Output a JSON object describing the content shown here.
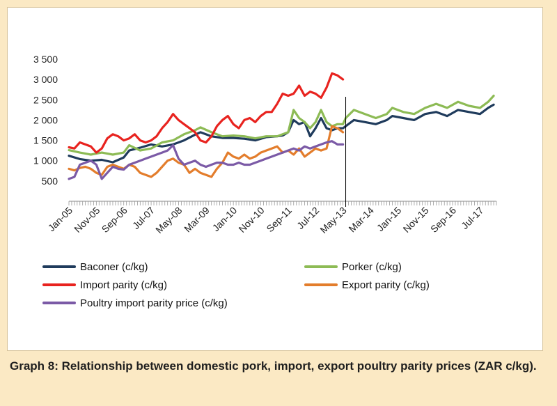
{
  "chart_data": {
    "type": "line",
    "title": "",
    "xlabel": "",
    "ylabel": "",
    "ylim": [
      0,
      3500
    ],
    "y_ticks": [
      "500",
      "1 000",
      "1 500",
      "2 000",
      "2 500",
      "3 000",
      "3 500"
    ],
    "x_tick_labels": [
      "Jan-05",
      "Nov-05",
      "Sep-06",
      "Jul-07",
      "May-08",
      "Mar-09",
      "Jan-10",
      "Nov-10",
      "Sep-11",
      "Jul-12",
      "May-13",
      "Mar-14",
      "Jan-15",
      "Nov-15",
      "Sep-16",
      "Jul-17"
    ],
    "x_months_from_jan05": [
      0,
      10,
      20,
      30,
      40,
      50,
      60,
      70,
      80,
      90,
      100,
      110,
      120,
      130,
      140,
      150
    ],
    "x_range_months": [
      0,
      156
    ],
    "forecast_divider_month": 101,
    "grid": false,
    "legend_position": "bottom",
    "series": [
      {
        "name": "Baconer (c/kg)",
        "color": "#1f3b5c",
        "points": [
          [
            0,
            1120
          ],
          [
            4,
            1040
          ],
          [
            8,
            1000
          ],
          [
            12,
            1020
          ],
          [
            16,
            960
          ],
          [
            20,
            1080
          ],
          [
            22,
            1250
          ],
          [
            26,
            1320
          ],
          [
            30,
            1400
          ],
          [
            34,
            1350
          ],
          [
            38,
            1400
          ],
          [
            42,
            1500
          ],
          [
            46,
            1640
          ],
          [
            48,
            1700
          ],
          [
            52,
            1600
          ],
          [
            56,
            1560
          ],
          [
            60,
            1560
          ],
          [
            64,
            1540
          ],
          [
            68,
            1500
          ],
          [
            72,
            1580
          ],
          [
            76,
            1600
          ],
          [
            78,
            1620
          ],
          [
            80,
            1700
          ],
          [
            82,
            2000
          ],
          [
            84,
            1900
          ],
          [
            86,
            1950
          ],
          [
            88,
            1600
          ],
          [
            90,
            1800
          ],
          [
            92,
            2050
          ],
          [
            94,
            1800
          ],
          [
            96,
            1750
          ],
          [
            98,
            1800
          ],
          [
            100,
            1800
          ],
          [
            101,
            1850
          ],
          [
            104,
            2000
          ],
          [
            108,
            1950
          ],
          [
            112,
            1900
          ],
          [
            116,
            2000
          ],
          [
            118,
            2100
          ],
          [
            122,
            2050
          ],
          [
            126,
            2000
          ],
          [
            130,
            2150
          ],
          [
            134,
            2200
          ],
          [
            138,
            2100
          ],
          [
            142,
            2250
          ],
          [
            146,
            2200
          ],
          [
            150,
            2150
          ],
          [
            153,
            2300
          ],
          [
            155,
            2380
          ]
        ]
      },
      {
        "name": "Porker (c/kg)",
        "color": "#8dbb55",
        "points": [
          [
            0,
            1260
          ],
          [
            4,
            1200
          ],
          [
            8,
            1150
          ],
          [
            12,
            1200
          ],
          [
            16,
            1150
          ],
          [
            20,
            1200
          ],
          [
            22,
            1380
          ],
          [
            26,
            1250
          ],
          [
            30,
            1300
          ],
          [
            34,
            1450
          ],
          [
            38,
            1500
          ],
          [
            42,
            1650
          ],
          [
            46,
            1750
          ],
          [
            48,
            1820
          ],
          [
            52,
            1700
          ],
          [
            56,
            1600
          ],
          [
            60,
            1620
          ],
          [
            64,
            1600
          ],
          [
            68,
            1550
          ],
          [
            72,
            1600
          ],
          [
            76,
            1600
          ],
          [
            78,
            1650
          ],
          [
            80,
            1700
          ],
          [
            82,
            2250
          ],
          [
            84,
            2050
          ],
          [
            86,
            1950
          ],
          [
            88,
            1800
          ],
          [
            90,
            1950
          ],
          [
            92,
            2250
          ],
          [
            94,
            1950
          ],
          [
            96,
            1850
          ],
          [
            98,
            1900
          ],
          [
            100,
            1900
          ],
          [
            101,
            2050
          ],
          [
            104,
            2250
          ],
          [
            108,
            2150
          ],
          [
            112,
            2050
          ],
          [
            116,
            2150
          ],
          [
            118,
            2300
          ],
          [
            122,
            2200
          ],
          [
            126,
            2150
          ],
          [
            130,
            2300
          ],
          [
            134,
            2400
          ],
          [
            138,
            2300
          ],
          [
            142,
            2450
          ],
          [
            146,
            2350
          ],
          [
            150,
            2300
          ],
          [
            153,
            2450
          ],
          [
            155,
            2600
          ]
        ]
      },
      {
        "name": "Import parity (c/kg)",
        "color": "#e8231f",
        "points": [
          [
            0,
            1330
          ],
          [
            2,
            1300
          ],
          [
            4,
            1450
          ],
          [
            6,
            1400
          ],
          [
            8,
            1350
          ],
          [
            10,
            1200
          ],
          [
            12,
            1300
          ],
          [
            14,
            1550
          ],
          [
            16,
            1650
          ],
          [
            18,
            1600
          ],
          [
            20,
            1500
          ],
          [
            22,
            1550
          ],
          [
            24,
            1650
          ],
          [
            26,
            1500
          ],
          [
            28,
            1450
          ],
          [
            30,
            1500
          ],
          [
            32,
            1600
          ],
          [
            34,
            1800
          ],
          [
            36,
            1950
          ],
          [
            38,
            2150
          ],
          [
            40,
            2000
          ],
          [
            42,
            1900
          ],
          [
            44,
            1800
          ],
          [
            46,
            1700
          ],
          [
            48,
            1500
          ],
          [
            50,
            1450
          ],
          [
            52,
            1600
          ],
          [
            54,
            1850
          ],
          [
            56,
            2000
          ],
          [
            58,
            2100
          ],
          [
            60,
            1900
          ],
          [
            62,
            1800
          ],
          [
            64,
            2000
          ],
          [
            66,
            2050
          ],
          [
            68,
            1950
          ],
          [
            70,
            2100
          ],
          [
            72,
            2200
          ],
          [
            74,
            2200
          ],
          [
            76,
            2400
          ],
          [
            78,
            2650
          ],
          [
            80,
            2600
          ],
          [
            82,
            2650
          ],
          [
            84,
            2850
          ],
          [
            86,
            2600
          ],
          [
            88,
            2700
          ],
          [
            90,
            2650
          ],
          [
            92,
            2550
          ],
          [
            94,
            2800
          ],
          [
            96,
            3150
          ],
          [
            98,
            3100
          ],
          [
            100,
            3000
          ]
        ]
      },
      {
        "name": "Export parity (c/kg)",
        "color": "#e37d2c",
        "points": [
          [
            0,
            800
          ],
          [
            2,
            760
          ],
          [
            4,
            820
          ],
          [
            6,
            850
          ],
          [
            8,
            800
          ],
          [
            10,
            700
          ],
          [
            12,
            650
          ],
          [
            14,
            850
          ],
          [
            16,
            900
          ],
          [
            18,
            850
          ],
          [
            20,
            800
          ],
          [
            22,
            900
          ],
          [
            24,
            850
          ],
          [
            26,
            700
          ],
          [
            28,
            650
          ],
          [
            30,
            600
          ],
          [
            32,
            700
          ],
          [
            34,
            850
          ],
          [
            36,
            1000
          ],
          [
            38,
            1050
          ],
          [
            40,
            950
          ],
          [
            42,
            900
          ],
          [
            44,
            700
          ],
          [
            46,
            800
          ],
          [
            48,
            700
          ],
          [
            50,
            650
          ],
          [
            52,
            600
          ],
          [
            54,
            800
          ],
          [
            56,
            950
          ],
          [
            58,
            1200
          ],
          [
            60,
            1100
          ],
          [
            62,
            1050
          ],
          [
            64,
            1150
          ],
          [
            66,
            1050
          ],
          [
            68,
            1100
          ],
          [
            70,
            1200
          ],
          [
            72,
            1250
          ],
          [
            74,
            1300
          ],
          [
            76,
            1350
          ],
          [
            78,
            1200
          ],
          [
            80,
            1250
          ],
          [
            82,
            1150
          ],
          [
            84,
            1300
          ],
          [
            86,
            1100
          ],
          [
            88,
            1200
          ],
          [
            90,
            1300
          ],
          [
            92,
            1250
          ],
          [
            94,
            1300
          ],
          [
            96,
            1850
          ],
          [
            98,
            1800
          ],
          [
            100,
            1700
          ]
        ]
      },
      {
        "name": "Poultry import parity price (c/kg)",
        "color": "#7b5aa6",
        "points": [
          [
            0,
            550
          ],
          [
            2,
            600
          ],
          [
            4,
            900
          ],
          [
            6,
            950
          ],
          [
            8,
            1000
          ],
          [
            10,
            900
          ],
          [
            12,
            550
          ],
          [
            14,
            700
          ],
          [
            16,
            850
          ],
          [
            18,
            800
          ],
          [
            20,
            780
          ],
          [
            22,
            900
          ],
          [
            24,
            950
          ],
          [
            26,
            1000
          ],
          [
            28,
            1050
          ],
          [
            30,
            1100
          ],
          [
            32,
            1150
          ],
          [
            34,
            1200
          ],
          [
            36,
            1250
          ],
          [
            38,
            1380
          ],
          [
            40,
            1050
          ],
          [
            42,
            900
          ],
          [
            44,
            950
          ],
          [
            46,
            1000
          ],
          [
            48,
            900
          ],
          [
            50,
            850
          ],
          [
            52,
            900
          ],
          [
            54,
            950
          ],
          [
            56,
            950
          ],
          [
            58,
            900
          ],
          [
            60,
            900
          ],
          [
            62,
            950
          ],
          [
            64,
            900
          ],
          [
            66,
            900
          ],
          [
            68,
            950
          ],
          [
            70,
            1000
          ],
          [
            72,
            1050
          ],
          [
            74,
            1100
          ],
          [
            76,
            1150
          ],
          [
            78,
            1200
          ],
          [
            80,
            1250
          ],
          [
            82,
            1300
          ],
          [
            84,
            1250
          ],
          [
            86,
            1350
          ],
          [
            88,
            1300
          ],
          [
            90,
            1350
          ],
          [
            92,
            1400
          ],
          [
            94,
            1450
          ],
          [
            96,
            1480
          ],
          [
            98,
            1400
          ],
          [
            100,
            1400
          ]
        ]
      }
    ]
  },
  "caption": "Graph 8: Relationship between domestic pork, import, export poultry parity prices (ZAR c/kg)."
}
